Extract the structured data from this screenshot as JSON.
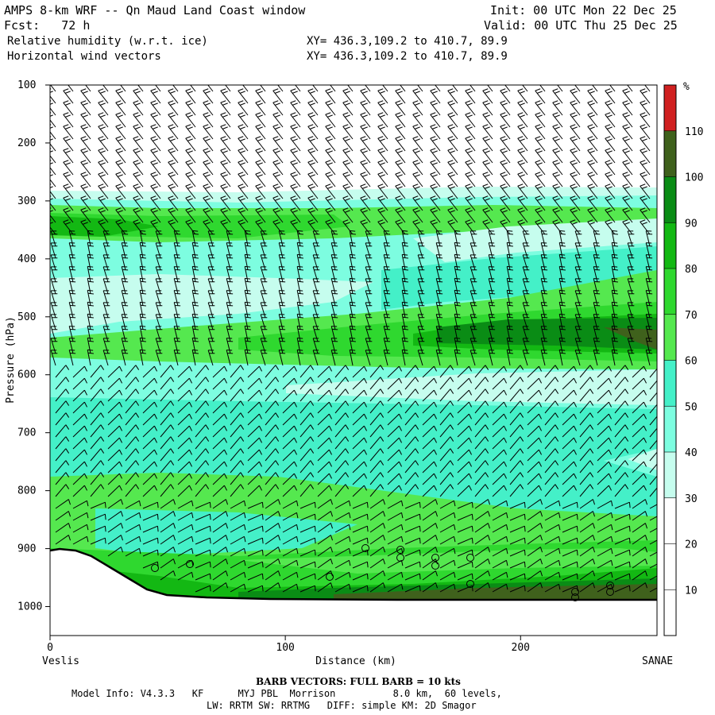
{
  "header": {
    "title": "AMPS 8-km WRF -- Qn Maud Land Coast window",
    "init": "Init: 00 UTC Mon 22 Dec 25",
    "fcst": "Fcst:   72 h",
    "valid": "Valid: 00 UTC Thu 25 Dec 25",
    "field1": "Relative humidity (w.r.t. ice)",
    "xy1": "XY= 436.3,109.2 to 410.7, 89.9",
    "field2": "Horizontal wind vectors",
    "xy2": "XY= 436.3,109.2 to 410.7, 89.9"
  },
  "footer": {
    "barb": "BARB VECTORS:  FULL BARB = 10 kts",
    "model_info": "Model Info: V4.3.3   KF      MYJ PBL  Morrison          8.0 km,  60 levels,",
    "model_info2": "LW: RRTM SW: RRTMG   DIFF: simple KM: 2D Smagor"
  },
  "colors": {
    "c30_40": "#c6fdee",
    "c40_50": "#7dfde0",
    "c50_60": "#44f0c8",
    "c60_70": "#55e84f",
    "c70_80": "#2fd82f",
    "c80_90": "#13b813",
    "c90_100": "#0a8c15",
    "c100_110": "#3f611c",
    "c110": "#d02020"
  },
  "chart_data": {
    "type": "heatmap",
    "xlabel": "Distance (km)",
    "ylabel": "Pressure (hPa)",
    "x_ticks": [
      0,
      100,
      200
    ],
    "xlim": [
      0,
      258
    ],
    "y_ticks": [
      100,
      200,
      300,
      400,
      500,
      600,
      700,
      800,
      900,
      1000
    ],
    "ylim": [
      100,
      1050
    ],
    "y_scale": "linear, inverted",
    "x_end_labels": {
      "left": "Veslis",
      "right": "SANAE"
    },
    "colorbar": {
      "unit": "%",
      "levels": [
        10,
        20,
        30,
        40,
        50,
        60,
        70,
        80,
        90,
        100,
        110
      ]
    },
    "terrain_surface_hPa": [
      [
        0,
        905
      ],
      [
        10,
        902
      ],
      [
        20,
        915
      ],
      [
        30,
        935
      ],
      [
        40,
        960
      ],
      [
        50,
        978
      ],
      [
        60,
        985
      ],
      [
        80,
        988
      ],
      [
        120,
        990
      ],
      [
        180,
        990
      ],
      [
        258,
        990
      ]
    ],
    "humidity_layers": [
      {
        "range_pct": "30-40",
        "top_hPa": 280,
        "bottom_hPa": 300
      },
      {
        "range_pct": "60-70",
        "top_hPa": 295,
        "bottom_hPa": 330
      },
      {
        "range_pct": "80-90",
        "top_hPa": 320,
        "bottom_hPa": 345
      },
      {
        "range_pct": "90-100",
        "top_hPa": 510,
        "bottom_hPa": 545
      },
      {
        "range_pct": "30-40",
        "top_hPa": 610,
        "bottom_hPa": 640
      },
      {
        "range_pct": "60-70",
        "top_hPa": 760,
        "bottom_hPa": 900
      },
      {
        "range_pct": "100-110",
        "top_hPa": 945,
        "bottom_hPa": 990
      }
    ]
  }
}
